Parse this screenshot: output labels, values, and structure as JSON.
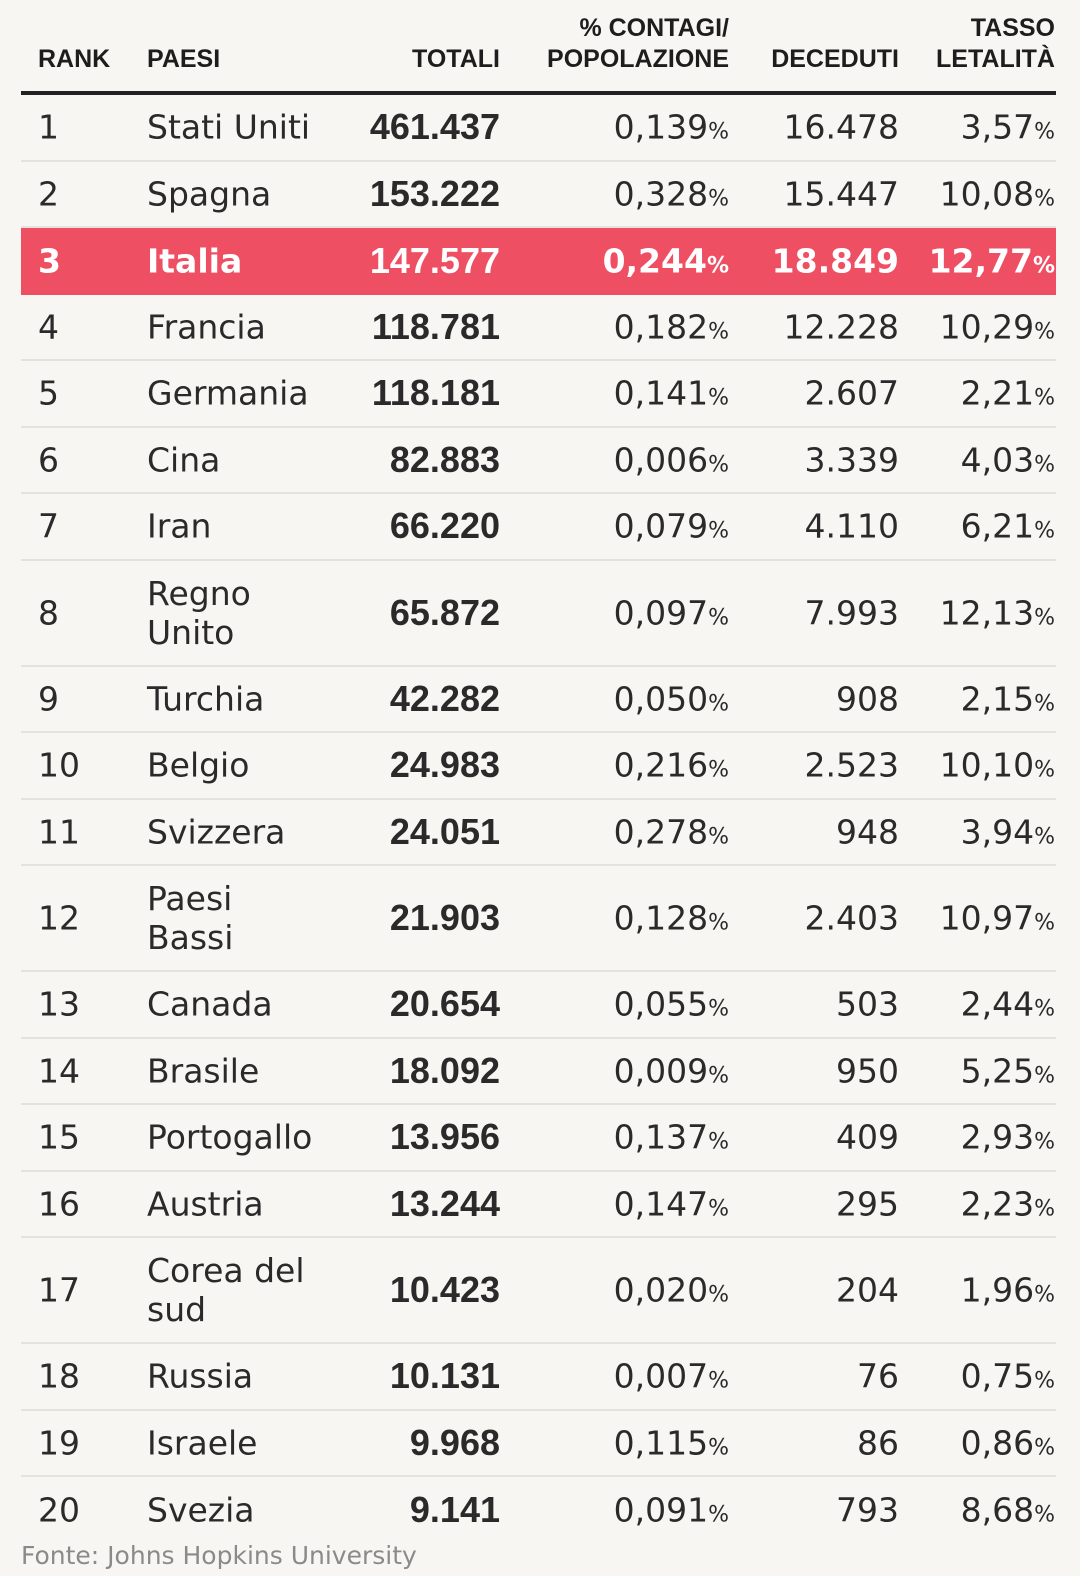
{
  "header": {
    "rank": "RANK",
    "paesi": "PAESI",
    "totali": "TOTALI",
    "pct_line1": "% CONTAGI/",
    "pct_line2": "POPOLAZIONE",
    "deceduti": "DECEDUTI",
    "tasso_line1": "TASSO",
    "tasso_line2": "LETALITÀ"
  },
  "percent_sign": "%",
  "highlight_color": "#ee4f63",
  "rows": [
    {
      "rank": "1",
      "paese": "Stati Uniti",
      "totali": "461.437",
      "pct": "0,139",
      "deceduti": "16.478",
      "tasso": "3,57",
      "highlight": false,
      "double": false
    },
    {
      "rank": "2",
      "paese": "Spagna",
      "totali": "153.222",
      "pct": "0,328",
      "deceduti": "15.447",
      "tasso": "10,08",
      "highlight": false,
      "double": false
    },
    {
      "rank": "3",
      "paese": "Italia",
      "totali": "147.577",
      "pct": "0,244",
      "deceduti": "18.849",
      "tasso": "12,77",
      "highlight": true,
      "double": false
    },
    {
      "rank": "4",
      "paese": "Francia",
      "totali": "118.781",
      "pct": "0,182",
      "deceduti": "12.228",
      "tasso": "10,29",
      "highlight": false,
      "double": false
    },
    {
      "rank": "5",
      "paese": "Germania",
      "totali": "118.181",
      "pct": "0,141",
      "deceduti": "2.607",
      "tasso": "2,21",
      "highlight": false,
      "double": false
    },
    {
      "rank": "6",
      "paese": "Cina",
      "totali": "82.883",
      "pct": "0,006",
      "deceduti": "3.339",
      "tasso": "4,03",
      "highlight": false,
      "double": false
    },
    {
      "rank": "7",
      "paese": "Iran",
      "totali": "66.220",
      "pct": "0,079",
      "deceduti": "4.110",
      "tasso": "6,21",
      "highlight": false,
      "double": false
    },
    {
      "rank": "8",
      "paese": "Regno Unito",
      "totali": "65.872",
      "pct": "0,097",
      "deceduti": "7.993",
      "tasso": "12,13",
      "highlight": false,
      "double": true
    },
    {
      "rank": "9",
      "paese": "Turchia",
      "totali": "42.282",
      "pct": "0,050",
      "deceduti": "908",
      "tasso": "2,15",
      "highlight": false,
      "double": false
    },
    {
      "rank": "10",
      "paese": "Belgio",
      "totali": "24.983",
      "pct": "0,216",
      "deceduti": "2.523",
      "tasso": "10,10",
      "highlight": false,
      "double": false
    },
    {
      "rank": "11",
      "paese": "Svizzera",
      "totali": "24.051",
      "pct": "0,278",
      "deceduti": "948",
      "tasso": "3,94",
      "highlight": false,
      "double": false
    },
    {
      "rank": "12",
      "paese": "Paesi Bassi",
      "totali": "21.903",
      "pct": "0,128",
      "deceduti": "2.403",
      "tasso": "10,97",
      "highlight": false,
      "double": true
    },
    {
      "rank": "13",
      "paese": "Canada",
      "totali": "20.654",
      "pct": "0,055",
      "deceduti": "503",
      "tasso": "2,44",
      "highlight": false,
      "double": false
    },
    {
      "rank": "14",
      "paese": "Brasile",
      "totali": "18.092",
      "pct": "0,009",
      "deceduti": "950",
      "tasso": "5,25",
      "highlight": false,
      "double": false
    },
    {
      "rank": "15",
      "paese": "Portogallo",
      "totali": "13.956",
      "pct": "0,137",
      "deceduti": "409",
      "tasso": "2,93",
      "highlight": false,
      "double": false
    },
    {
      "rank": "16",
      "paese": "Austria",
      "totali": "13.244",
      "pct": "0,147",
      "deceduti": "295",
      "tasso": "2,23",
      "highlight": false,
      "double": false
    },
    {
      "rank": "17",
      "paese": "Corea del sud",
      "totali": "10.423",
      "pct": "0,020",
      "deceduti": "204",
      "tasso": "1,96",
      "highlight": false,
      "double": true
    },
    {
      "rank": "18",
      "paese": "Russia",
      "totali": "10.131",
      "pct": "0,007",
      "deceduti": "76",
      "tasso": "0,75",
      "highlight": false,
      "double": false
    },
    {
      "rank": "19",
      "paese": "Israele",
      "totali": "9.968",
      "pct": "0,115",
      "deceduti": "86",
      "tasso": "0,86",
      "highlight": false,
      "double": false
    },
    {
      "rank": "20",
      "paese": "Svezia",
      "totali": "9.141",
      "pct": "0,091",
      "deceduti": "793",
      "tasso": "8,68",
      "highlight": false,
      "double": false
    }
  ],
  "source": "Fonte: Johns Hopkins University"
}
